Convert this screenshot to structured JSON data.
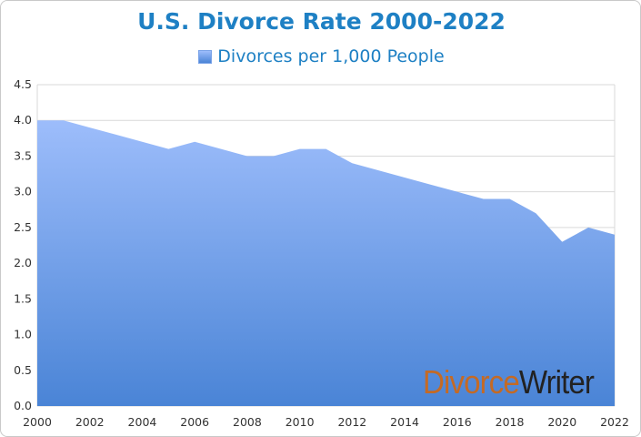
{
  "chart_data": {
    "type": "area",
    "title": "U.S.  Divorce Rate 2000-2022",
    "series": [
      {
        "name": "Divorces per 1,000 People",
        "x": [
          2000,
          2001,
          2002,
          2003,
          2004,
          2005,
          2006,
          2007,
          2008,
          2009,
          2010,
          2011,
          2012,
          2013,
          2014,
          2015,
          2016,
          2017,
          2018,
          2019,
          2020,
          2021,
          2022
        ],
        "values": [
          4.0,
          4.0,
          3.9,
          3.8,
          3.7,
          3.6,
          3.7,
          3.6,
          3.5,
          3.5,
          3.6,
          3.6,
          3.4,
          3.3,
          3.2,
          3.1,
          3.0,
          2.9,
          2.9,
          2.7,
          2.3,
          2.5,
          2.4
        ]
      }
    ],
    "xlim": [
      2000,
      2022
    ],
    "ylim": [
      0,
      4.5
    ],
    "x_ticks": [
      "2000",
      "2002",
      "2004",
      "2006",
      "2008",
      "2010",
      "2012",
      "2014",
      "2016",
      "2018",
      "2020",
      "2022"
    ],
    "y_ticks": [
      "0.0",
      "0.5",
      "1.0",
      "1.5",
      "2.0",
      "2.5",
      "3.0",
      "3.5",
      "4.0",
      "4.5"
    ],
    "grid": true,
    "legend_position": "top-center",
    "colors": {
      "title": "#1e80c4",
      "area_top": "#9dbdfb",
      "area_bottom": "#4a84d6",
      "grid": "#d9d9d9"
    }
  },
  "watermark": {
    "part1": "Divorce",
    "part2": "Writer"
  }
}
